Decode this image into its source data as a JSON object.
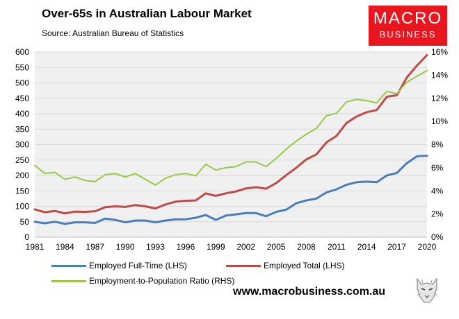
{
  "header": {
    "title": "Over-65s in Australian Labour Market",
    "source": "Source: Australian Bureau of Statistics",
    "logo_line1": "MACRO",
    "logo_line2": "BUSINESS"
  },
  "footer": {
    "website": "www.macrobusiness.com.au"
  },
  "colors": {
    "full_time": "#4a7ebb",
    "total": "#be4b48",
    "ratio": "#98c847",
    "logo_bg": "#e8161e"
  },
  "chart_data": {
    "type": "line",
    "title": "Over-65s in Australian Labour Market",
    "x": [
      1981,
      1982,
      1983,
      1984,
      1985,
      1986,
      1987,
      1988,
      1989,
      1990,
      1991,
      1992,
      1993,
      1994,
      1995,
      1996,
      1997,
      1998,
      1999,
      2000,
      2001,
      2002,
      2003,
      2004,
      2005,
      2006,
      2007,
      2008,
      2009,
      2010,
      2011,
      2012,
      2013,
      2014,
      2015,
      2016,
      2017,
      2018,
      2019,
      2020
    ],
    "x_ticks": [
      1981,
      1984,
      1987,
      1990,
      1993,
      1996,
      1999,
      2002,
      2005,
      2008,
      2011,
      2014,
      2017,
      2020
    ],
    "y_left_ticks": [
      0,
      50,
      100,
      150,
      200,
      250,
      300,
      350,
      400,
      450,
      500,
      550,
      600
    ],
    "y_left_lim": [
      0,
      600
    ],
    "y_right_ticks": [
      "0%",
      "2%",
      "4%",
      "6%",
      "8%",
      "10%",
      "12%",
      "14%",
      "16%"
    ],
    "y_right_lim": [
      0,
      16
    ],
    "series": [
      {
        "name": "Employed Full-Time (LHS)",
        "axis": "left",
        "color": "#4a7ebb",
        "values": [
          50,
          45,
          50,
          43,
          48,
          48,
          46,
          60,
          56,
          48,
          54,
          54,
          48,
          54,
          58,
          58,
          63,
          72,
          56,
          70,
          74,
          78,
          78,
          68,
          82,
          89,
          110,
          119,
          125,
          145,
          155,
          170,
          178,
          180,
          178,
          200,
          208,
          240,
          262,
          264
        ]
      },
      {
        "name": "Employed Total (LHS)",
        "axis": "left",
        "color": "#be4b48",
        "values": [
          90,
          81,
          85,
          77,
          83,
          82,
          84,
          97,
          100,
          98,
          104,
          100,
          93,
          106,
          115,
          118,
          119,
          142,
          134,
          142,
          148,
          158,
          162,
          157,
          175,
          201,
          225,
          252,
          268,
          307,
          328,
          370,
          391,
          405,
          412,
          455,
          460,
          518,
          556,
          590
        ]
      },
      {
        "name": "Employment-to-Population Ratio (RHS)",
        "axis": "right",
        "color": "#98c847",
        "values": [
          6.2,
          5.5,
          5.6,
          5.0,
          5.2,
          4.9,
          4.8,
          5.4,
          5.5,
          5.2,
          5.5,
          5.0,
          4.5,
          5.1,
          5.4,
          5.5,
          5.3,
          6.3,
          5.8,
          6.0,
          6.1,
          6.5,
          6.5,
          6.1,
          6.8,
          7.6,
          8.3,
          8.9,
          9.4,
          10.5,
          10.7,
          11.7,
          11.9,
          11.8,
          11.6,
          12.6,
          12.4,
          13.4,
          13.9,
          14.4
        ]
      }
    ]
  }
}
